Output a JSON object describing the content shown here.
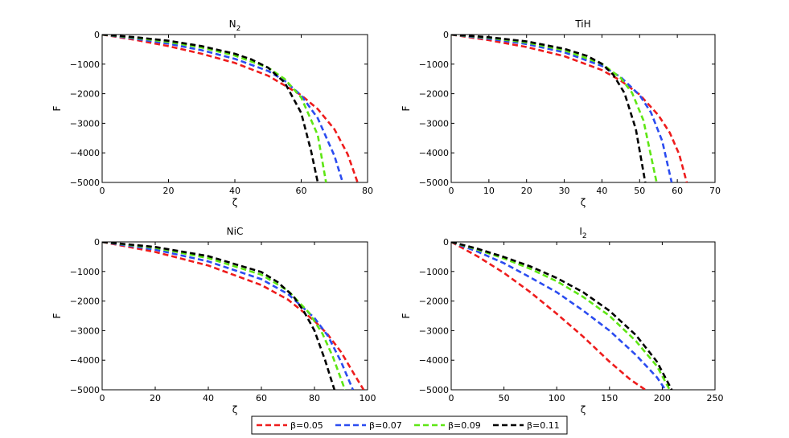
{
  "chart_data": [
    {
      "type": "line",
      "title": "N",
      "title_sub": "2",
      "xlabel": "ζ",
      "ylabel": "F",
      "xlim": [
        0,
        80
      ],
      "ylim": [
        -5000,
        0
      ],
      "xticks": [
        "0",
        "20",
        "40",
        "60",
        "80"
      ],
      "yticks": [
        "0",
        "−1000",
        "−2000",
        "−3000",
        "−4000",
        "−5000"
      ],
      "series": [
        {
          "name": "β=0.05",
          "x": [
            0,
            10,
            20,
            30,
            40,
            50,
            60,
            65,
            70,
            74,
            77
          ],
          "y": [
            0,
            -180,
            -390,
            -650,
            -960,
            -1390,
            -2050,
            -2520,
            -3200,
            -4050,
            -5000
          ]
        },
        {
          "name": "β=0.07",
          "x": [
            0,
            10,
            20,
            30,
            40,
            50,
            55,
            60,
            65,
            70,
            72.5
          ],
          "y": [
            0,
            -140,
            -310,
            -530,
            -820,
            -1230,
            -1560,
            -2060,
            -2830,
            -4100,
            -5000
          ]
        },
        {
          "name": "β=0.09",
          "x": [
            0,
            10,
            20,
            30,
            40,
            50,
            55,
            60,
            65,
            67.5
          ],
          "y": [
            0,
            -110,
            -250,
            -440,
            -710,
            -1120,
            -1500,
            -2130,
            -3400,
            -5000
          ]
        },
        {
          "name": "β=0.11",
          "x": [
            0,
            10,
            20,
            30,
            40,
            45,
            50,
            55,
            60,
            63,
            65
          ],
          "y": [
            0,
            -90,
            -210,
            -390,
            -650,
            -840,
            -1120,
            -1620,
            -2650,
            -3950,
            -5000
          ]
        }
      ]
    },
    {
      "type": "line",
      "title": "TiH",
      "title_sub": "",
      "xlabel": "ζ",
      "ylabel": "F",
      "xlim": [
        0,
        70
      ],
      "ylim": [
        -5000,
        0
      ],
      "xticks": [
        "0",
        "10",
        "20",
        "30",
        "40",
        "50",
        "60",
        "70"
      ],
      "yticks": [
        "0",
        "−1000",
        "−2000",
        "−3000",
        "−4000",
        "−5000"
      ],
      "series": [
        {
          "name": "β=0.05",
          "x": [
            0,
            10,
            20,
            30,
            40,
            45,
            50,
            55,
            58,
            60.5,
            62.5
          ],
          "y": [
            0,
            -190,
            -420,
            -730,
            -1200,
            -1560,
            -2030,
            -2730,
            -3320,
            -4050,
            -5000
          ]
        },
        {
          "name": "β=0.07",
          "x": [
            0,
            10,
            20,
            30,
            40,
            45,
            50,
            53,
            56,
            58.5
          ],
          "y": [
            0,
            -140,
            -320,
            -600,
            -1060,
            -1440,
            -2050,
            -2630,
            -3600,
            -5000
          ]
        },
        {
          "name": "β=0.09",
          "x": [
            0,
            10,
            20,
            30,
            40,
            45,
            48,
            51,
            54.5
          ],
          "y": [
            0,
            -110,
            -270,
            -530,
            -990,
            -1470,
            -1970,
            -2900,
            -5000
          ]
        },
        {
          "name": "β=0.11",
          "x": [
            0,
            10,
            20,
            30,
            36,
            40,
            43,
            46,
            49,
            51.5
          ],
          "y": [
            0,
            -90,
            -230,
            -480,
            -720,
            -990,
            -1360,
            -1980,
            -3200,
            -5000
          ]
        }
      ]
    },
    {
      "type": "line",
      "title": "NiC",
      "title_sub": "",
      "xlabel": "ζ",
      "ylabel": "F",
      "xlim": [
        0,
        100
      ],
      "ylim": [
        -5000,
        0
      ],
      "xticks": [
        "0",
        "20",
        "40",
        "60",
        "80",
        "100"
      ],
      "yticks": [
        "0",
        "−1000",
        "−2000",
        "−3000",
        "−4000",
        "−5000"
      ],
      "series": [
        {
          "name": "β=0.05",
          "x": [
            0,
            20,
            40,
            60,
            70,
            80,
            85,
            90,
            95,
            98.5
          ],
          "y": [
            0,
            -340,
            -800,
            -1460,
            -1950,
            -2670,
            -3130,
            -3720,
            -4480,
            -5000
          ]
        },
        {
          "name": "β=0.07",
          "x": [
            0,
            20,
            40,
            60,
            70,
            80,
            85,
            90,
            94.5
          ],
          "y": [
            0,
            -260,
            -660,
            -1260,
            -1760,
            -2570,
            -3170,
            -4050,
            -5000
          ]
        },
        {
          "name": "β=0.09",
          "x": [
            0,
            20,
            40,
            60,
            70,
            78,
            83,
            87,
            91.5
          ],
          "y": [
            0,
            -200,
            -550,
            -1110,
            -1650,
            -2400,
            -3100,
            -3900,
            -5000
          ]
        },
        {
          "name": "β=0.11",
          "x": [
            0,
            20,
            40,
            60,
            66,
            72,
            76,
            80,
            84,
            87.5
          ],
          "y": [
            0,
            -170,
            -480,
            -1020,
            -1350,
            -1830,
            -2350,
            -3000,
            -4000,
            -5000
          ]
        }
      ]
    },
    {
      "type": "line",
      "title": "I",
      "title_sub": "2",
      "xlabel": "ζ",
      "ylabel": "F",
      "xlim": [
        0,
        250
      ],
      "ylim": [
        -5000,
        0
      ],
      "xticks": [
        "0",
        "50",
        "100",
        "150",
        "200",
        "250"
      ],
      "yticks": [
        "0",
        "−1000",
        "−2000",
        "−3000",
        "−4000",
        "−5000"
      ],
      "series": [
        {
          "name": "β=0.05",
          "x": [
            0,
            25,
            50,
            75,
            100,
            125,
            150,
            170,
            184
          ],
          "y": [
            0,
            -490,
            -1050,
            -1700,
            -2430,
            -3200,
            -4050,
            -4660,
            -5000
          ]
        },
        {
          "name": "β=0.07",
          "x": [
            0,
            25,
            50,
            75,
            100,
            125,
            150,
            175,
            195,
            203
          ],
          "y": [
            0,
            -330,
            -720,
            -1200,
            -1700,
            -2320,
            -3000,
            -3820,
            -4580,
            -5000
          ]
        },
        {
          "name": "β=0.09",
          "x": [
            0,
            25,
            50,
            75,
            100,
            125,
            150,
            175,
            195,
            207
          ],
          "y": [
            0,
            -260,
            -560,
            -910,
            -1330,
            -1860,
            -2500,
            -3350,
            -4200,
            -5000
          ]
        },
        {
          "name": "β=0.11",
          "x": [
            0,
            25,
            50,
            75,
            100,
            125,
            150,
            175,
            195,
            209
          ],
          "y": [
            0,
            -230,
            -510,
            -830,
            -1220,
            -1700,
            -2330,
            -3150,
            -4050,
            -5000
          ]
        }
      ]
    }
  ],
  "legend": {
    "placement": "bottom-center",
    "entries": [
      "β=0.05",
      "β=0.07",
      "β=0.09",
      "β=0.11"
    ]
  },
  "colors": {
    "β=0.05": "#ee1c1c",
    "β=0.07": "#2b4cf0",
    "β=0.09": "#5ee614",
    "β=0.11": "#000000"
  }
}
